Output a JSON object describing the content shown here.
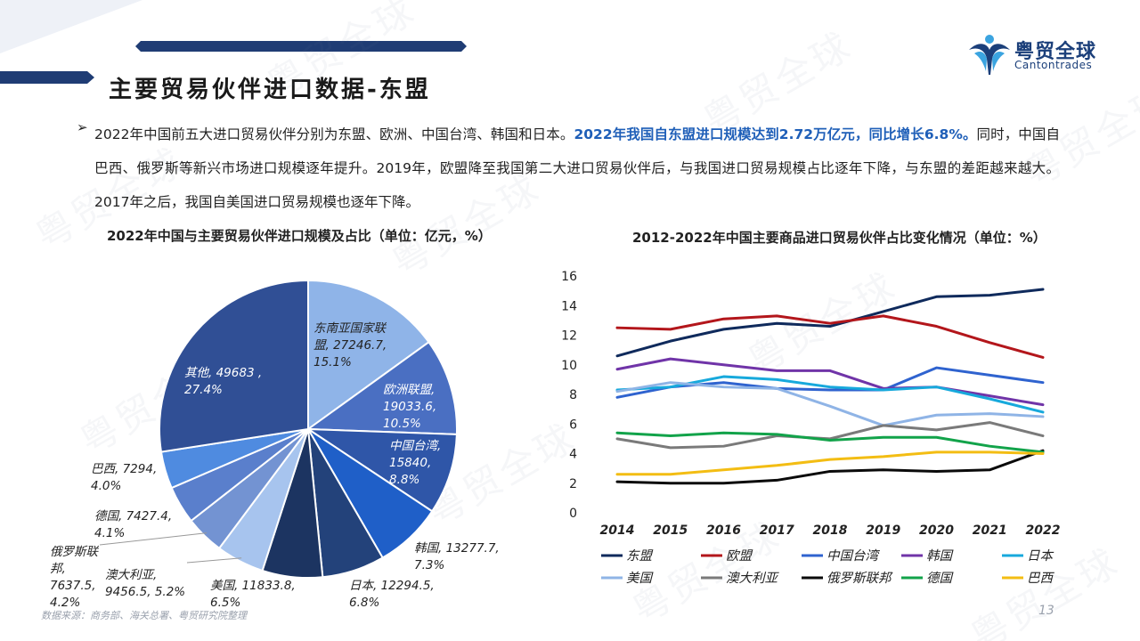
{
  "page": {
    "title": "主要贸易伙伴进口数据-东盟",
    "logo_cn": "粤贸全球",
    "logo_en": "Cantontrades",
    "watermark": "粤贸全球",
    "bullet": "➢",
    "para_a": "2022年中国前五大进口贸易伙伴分别为东盟、欧洲、中国台湾、韩国和日本。",
    "para_highlight": "2022年我国自东盟进口规模达到2.72万亿元，同比增长6.8%。",
    "para_b": "同时，中国自巴西、俄罗斯等新兴市场进口规模逐年提升。2019年，欧盟降至我国第二大进口贸易伙伴后，与我国进口贸易规模占比逐年下降，与东盟的差距越来越大。2017年之后，我国自美国进口贸易规模也逐年下降。",
    "source": "数据来源：商务部、海关总署、粤贸研究院整理",
    "page_number": "13"
  },
  "chart_data": [
    {
      "type": "pie",
      "title": "2022年中国与主要贸易伙伴进口规模及占比（单位：亿元，%）",
      "slices": [
        {
          "name": "东南亚国家联盟",
          "value": 27246.7,
          "pct": "15.1%",
          "color": "#8fb4e8",
          "label": [
            "东南亚国家联",
            "盟, 27246.7,",
            "15.1%"
          ]
        },
        {
          "name": "欧洲联盟",
          "value": 19033.6,
          "pct": "10.5%",
          "color": "#4a6fc2",
          "label": [
            "欧洲联盟,",
            "19033.6,",
            "10.5%"
          ]
        },
        {
          "name": "中国台湾",
          "value": 15840,
          "pct": "8.8%",
          "color": "#2f56a8",
          "label": [
            "中国台湾,",
            "15840,",
            "8.8%"
          ]
        },
        {
          "name": "韩国",
          "value": 13277.7,
          "pct": "7.3%",
          "color": "#1f5fc8",
          "label": [
            "韩国, 13277.7,",
            "7.3%"
          ]
        },
        {
          "name": "日本",
          "value": 12294.5,
          "pct": "6.8%",
          "color": "#23427a",
          "label": [
            "日本, 12294.5,",
            "6.8%"
          ]
        },
        {
          "name": "美国",
          "value": 11833.8,
          "pct": "6.5%",
          "color": "#1c3461",
          "label": [
            "美国, 11833.8,",
            "6.5%"
          ]
        },
        {
          "name": "澳大利亚",
          "value": 9456.5,
          "pct": "5.2%",
          "color": "#a7c4ee",
          "label": [
            "澳大利亚,",
            "9456.5, 5.2%"
          ]
        },
        {
          "name": "俄罗斯联邦",
          "value": 7637.5,
          "pct": "4.2%",
          "color": "#7393d2",
          "label": [
            "俄罗斯联",
            "邦,",
            "7637.5,",
            "4.2%"
          ]
        },
        {
          "name": "德国",
          "value": 7427.4,
          "pct": "4.1%",
          "color": "#5a7fcc",
          "label": [
            "德国, 7427.4,",
            "4.1%"
          ]
        },
        {
          "name": "巴西",
          "value": 7294,
          "pct": "4.0%",
          "color": "#4f8be0",
          "label": [
            "巴西, 7294,",
            "4.0%"
          ]
        },
        {
          "name": "其他",
          "value": 49683,
          "pct": "27.4%",
          "color": "#304f95",
          "label": [
            "其他, 49683 ,",
            "27.4%"
          ]
        }
      ]
    },
    {
      "type": "line",
      "title": "2012-2022年中国主要商品进口贸易伙伴占比变化情况（单位：%）",
      "x": [
        "2014",
        "2015",
        "2016",
        "2017",
        "2018",
        "2019",
        "2020",
        "2021",
        "2022"
      ],
      "ylim": [
        0,
        16
      ],
      "yticks": [
        0,
        2,
        4,
        6,
        8,
        10,
        12,
        14,
        16
      ],
      "legend_position": "bottom",
      "series": [
        {
          "name": "东盟",
          "color": "#0f2a5c",
          "values": [
            10.6,
            11.6,
            12.4,
            12.8,
            12.6,
            13.6,
            14.6,
            14.7,
            15.1
          ]
        },
        {
          "name": "欧盟",
          "color": "#b3161b",
          "values": [
            12.5,
            12.4,
            13.1,
            13.3,
            12.8,
            13.3,
            12.6,
            11.5,
            10.5
          ]
        },
        {
          "name": "中国台湾",
          "color": "#2f63cf",
          "values": [
            7.8,
            8.5,
            8.8,
            8.4,
            8.3,
            8.3,
            9.8,
            9.3,
            8.8
          ]
        },
        {
          "name": "韩国",
          "color": "#7034a8",
          "values": [
            9.7,
            10.4,
            10.0,
            9.6,
            9.6,
            8.4,
            8.5,
            7.9,
            7.3
          ]
        },
        {
          "name": "日本",
          "color": "#17a9dc",
          "values": [
            8.3,
            8.5,
            9.2,
            9.0,
            8.5,
            8.3,
            8.5,
            7.7,
            6.8
          ]
        },
        {
          "name": "美国",
          "color": "#8fb4e6",
          "values": [
            8.2,
            8.8,
            8.5,
            8.4,
            7.2,
            5.9,
            6.6,
            6.7,
            6.5
          ]
        },
        {
          "name": "澳大利亚",
          "color": "#7a7a7a",
          "values": [
            5.0,
            4.4,
            4.5,
            5.2,
            5.0,
            5.9,
            5.6,
            6.1,
            5.2
          ]
        },
        {
          "name": "俄罗斯联邦",
          "color": "#0a0a0a",
          "values": [
            2.1,
            2.0,
            2.0,
            2.2,
            2.8,
            2.9,
            2.8,
            2.9,
            4.2
          ]
        },
        {
          "name": "德国",
          "color": "#12a34a",
          "values": [
            5.4,
            5.2,
            5.4,
            5.3,
            4.9,
            5.1,
            5.1,
            4.5,
            4.1
          ]
        },
        {
          "name": "巴西",
          "color": "#f3bd13",
          "values": [
            2.6,
            2.6,
            2.9,
            3.2,
            3.6,
            3.8,
            4.1,
            4.1,
            4.0
          ]
        }
      ]
    }
  ]
}
